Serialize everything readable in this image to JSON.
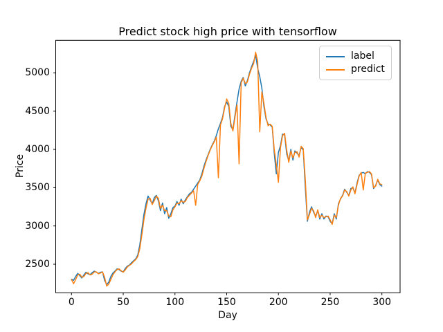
{
  "figure": {
    "background": "#ffffff",
    "title": "Predict stock high price with tensorflow"
  },
  "axes": {
    "xlabel": "Day",
    "ylabel": "Price",
    "xtick_labels": [
      "0",
      "50",
      "100",
      "150",
      "200",
      "250",
      "300"
    ],
    "ytick_labels": [
      "2500",
      "3000",
      "3500",
      "4000",
      "4500",
      "5000"
    ],
    "spine_color": "#000000"
  },
  "legend": {
    "position": "upper right",
    "entries": [
      {
        "label": "label",
        "color": "#1f77b4"
      },
      {
        "label": "predict",
        "color": "#ff7f0e"
      }
    ]
  },
  "chart_data": {
    "type": "line",
    "title": "Predict stock high price with tensorflow",
    "xlabel": "Day",
    "ylabel": "Price",
    "grid": false,
    "legend_position": "upper right",
    "xlim": [
      -15.25,
      317.6
    ],
    "ylim": [
      2127,
      5425
    ],
    "xticks": [
      0,
      50,
      100,
      150,
      200,
      250,
      300
    ],
    "yticks": [
      2500,
      3000,
      3500,
      4000,
      4500,
      5000
    ],
    "x": [
      0,
      2,
      4,
      6,
      8,
      10,
      12,
      14,
      16,
      18,
      20,
      22,
      24,
      26,
      28,
      30,
      32,
      34,
      36,
      38,
      40,
      42,
      44,
      46,
      48,
      50,
      52,
      54,
      56,
      58,
      60,
      62,
      64,
      66,
      68,
      70,
      72,
      74,
      76,
      78,
      80,
      82,
      84,
      86,
      88,
      90,
      92,
      94,
      96,
      98,
      100,
      102,
      104,
      106,
      108,
      110,
      112,
      114,
      116,
      118,
      120,
      122,
      124,
      126,
      128,
      130,
      132,
      134,
      136,
      138,
      140,
      142,
      144,
      146,
      148,
      150,
      152,
      154,
      156,
      158,
      160,
      162,
      164,
      166,
      168,
      170,
      172,
      174,
      176,
      178,
      180,
      182,
      184,
      186,
      188,
      190,
      192,
      194,
      196,
      198,
      200,
      202,
      204,
      206,
      208,
      210,
      212,
      214,
      216,
      218,
      220,
      222,
      224,
      226,
      228,
      230,
      232,
      234,
      236,
      238,
      240,
      242,
      244,
      246,
      248,
      250,
      252,
      254,
      256,
      258,
      260,
      262,
      264,
      266,
      268,
      270,
      272,
      274,
      276,
      278,
      280,
      282,
      284,
      286,
      288,
      290,
      292,
      294,
      296,
      298,
      300
    ],
    "series": [
      {
        "name": "label",
        "color": "#1f77b4",
        "values": [
          2305,
          2290,
          2340,
          2380,
          2350,
          2320,
          2360,
          2395,
          2375,
          2365,
          2390,
          2410,
          2395,
          2380,
          2395,
          2400,
          2290,
          2235,
          2265,
          2340,
          2385,
          2410,
          2440,
          2430,
          2410,
          2400,
          2445,
          2475,
          2490,
          2520,
          2545,
          2570,
          2620,
          2750,
          2950,
          3150,
          3290,
          3390,
          3340,
          3290,
          3370,
          3400,
          3330,
          3200,
          3300,
          3160,
          3240,
          3100,
          3160,
          3240,
          3260,
          3320,
          3270,
          3350,
          3290,
          3340,
          3380,
          3420,
          3440,
          3480,
          3520,
          3560,
          3600,
          3680,
          3780,
          3860,
          3930,
          4000,
          4060,
          4110,
          4180,
          4270,
          4340,
          4420,
          4560,
          4620,
          4560,
          4300,
          4260,
          4450,
          4620,
          4790,
          4890,
          4940,
          4830,
          4900,
          5000,
          5080,
          5150,
          5230,
          5060,
          4950,
          4800,
          4560,
          4400,
          4330,
          4320,
          4290,
          3950,
          3680,
          3960,
          4050,
          4200,
          4190,
          3940,
          3855,
          4000,
          3860,
          3980,
          3950,
          3920,
          4030,
          3990,
          3500,
          3060,
          3180,
          3250,
          3180,
          3130,
          3200,
          3090,
          3160,
          3090,
          3130,
          3120,
          3060,
          3030,
          3160,
          3090,
          3290,
          3350,
          3400,
          3480,
          3440,
          3400,
          3490,
          3500,
          3430,
          3560,
          3660,
          3690,
          3700,
          3680,
          3710,
          3700,
          3670,
          3490,
          3530,
          3600,
          3540,
          3520
        ]
      },
      {
        "name": "predict",
        "color": "#ff7f0e",
        "values": [
          2300,
          2245,
          2300,
          2360,
          2370,
          2330,
          2340,
          2380,
          2390,
          2360,
          2370,
          2400,
          2400,
          2375,
          2385,
          2400,
          2330,
          2215,
          2240,
          2300,
          2360,
          2400,
          2430,
          2440,
          2415,
          2395,
          2425,
          2465,
          2485,
          2505,
          2535,
          2560,
          2600,
          2700,
          2880,
          3080,
          3230,
          3350,
          3360,
          3280,
          3330,
          3390,
          3360,
          3230,
          3270,
          3200,
          3200,
          3130,
          3120,
          3210,
          3250,
          3300,
          3290,
          3330,
          3310,
          3320,
          3370,
          3400,
          3430,
          3460,
          3270,
          3540,
          3590,
          3650,
          3750,
          3840,
          3920,
          3990,
          4050,
          4100,
          4160,
          3630,
          4320,
          4400,
          4540,
          4660,
          4600,
          4340,
          4240,
          4420,
          4580,
          3810,
          4870,
          4930,
          4860,
          4880,
          4980,
          5060,
          5120,
          5270,
          5150,
          4230,
          4750,
          4600,
          4420,
          4310,
          4330,
          4300,
          4000,
          3800,
          3570,
          4020,
          4180,
          4210,
          3990,
          3830,
          3980,
          3890,
          3960,
          3970,
          3900,
          4040,
          4010,
          3600,
          3080,
          3150,
          3230,
          3200,
          3110,
          3210,
          3110,
          3140,
          3110,
          3120,
          3130,
          3080,
          3020,
          3140,
          3110,
          3270,
          3360,
          3390,
          3470,
          3450,
          3390,
          3470,
          3510,
          3420,
          3540,
          3650,
          3700,
          3470,
          3690,
          3700,
          3710,
          3680,
          3500,
          3520,
          3610,
          3550,
          3540
        ]
      }
    ]
  }
}
